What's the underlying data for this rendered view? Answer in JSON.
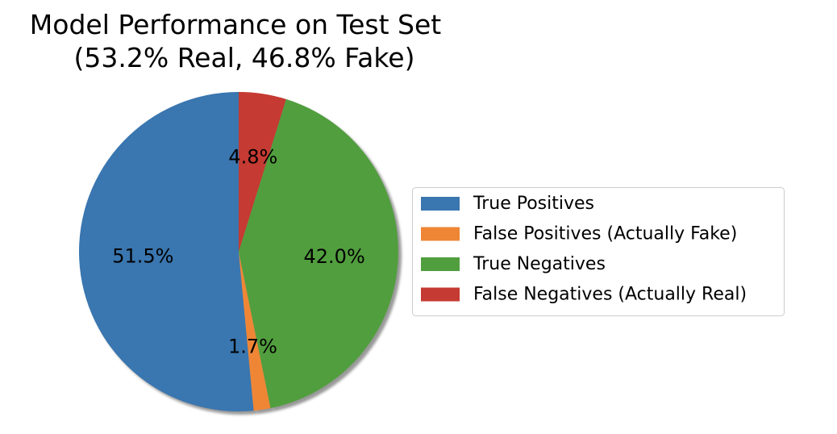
{
  "chart_data": {
    "type": "pie",
    "title_lines": [
      "Model Performance on Test Set",
      "(53.2% Real, 46.8% Fake)"
    ],
    "start_angle_deg": 90,
    "direction": "counterclockwise",
    "shadow": true,
    "slices": [
      {
        "label": "True Positives",
        "value": 51.5,
        "value_label": "51.5%",
        "color": "#3a76af"
      },
      {
        "label": "False Positives (Actually Fake)",
        "value": 1.7,
        "value_label": "1.7%",
        "color": "#ef8636"
      },
      {
        "label": "True Negatives",
        "value": 42.0,
        "value_label": "42.0%",
        "color": "#519e3e"
      },
      {
        "label": "False Negatives (Actually Real)",
        "value": 4.8,
        "value_label": "4.8%",
        "color": "#c53a32"
      }
    ],
    "legend_placement": "right"
  }
}
